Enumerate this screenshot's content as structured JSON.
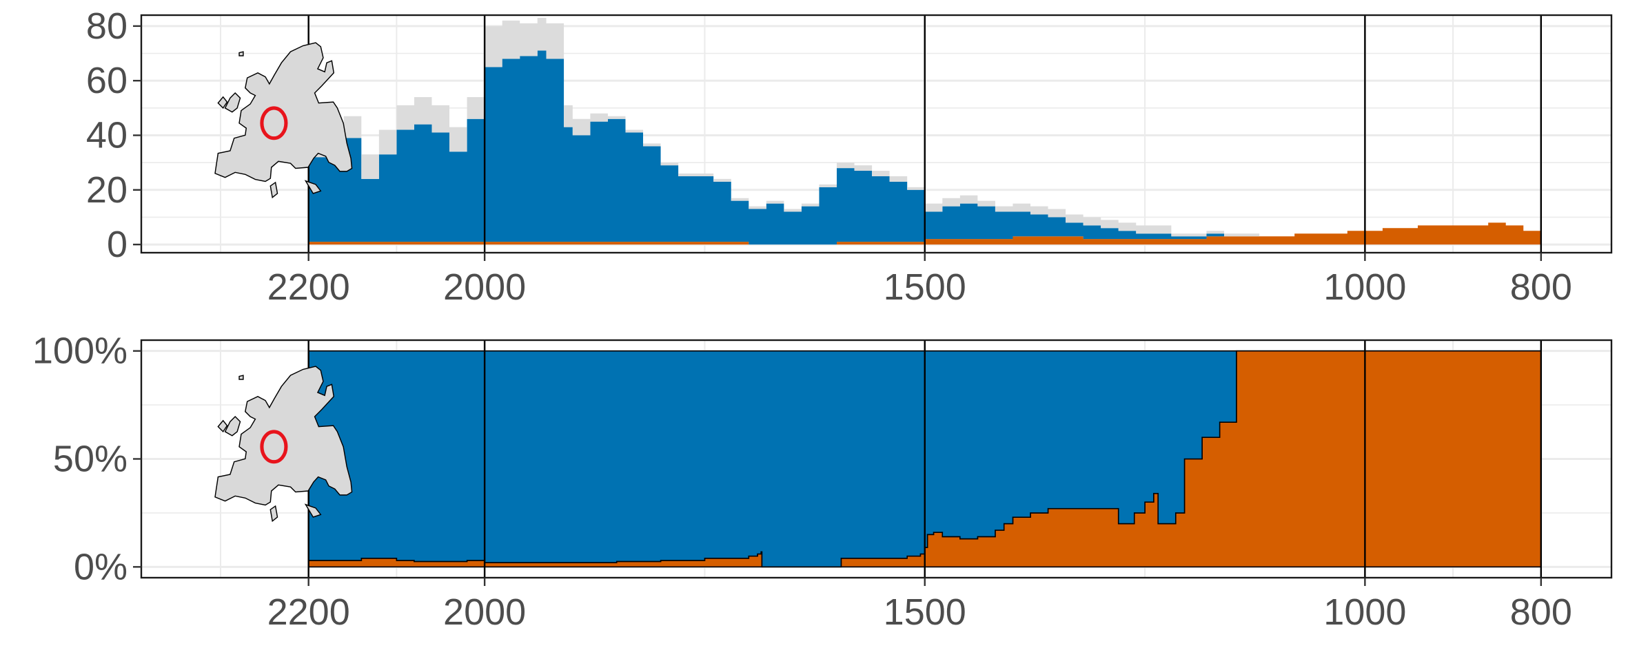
{
  "colors": {
    "blue": "#0072B2",
    "orange": "#D55E00",
    "gray": "#dcdcdc",
    "map_fill": "#d9d9d9",
    "marker": "#e8141c",
    "grid": "#ebebeb"
  },
  "chart_data": [
    {
      "type": "area",
      "stacked": true,
      "x_reversed": true,
      "xlim": [
        2390,
        720
      ],
      "ylim": [
        -3,
        84
      ],
      "x_ticks": [
        {
          "value": 2200,
          "label": "2200"
        },
        {
          "value": 2000,
          "label": "2000"
        },
        {
          "value": 1500,
          "label": "1500"
        },
        {
          "value": 1000,
          "label": "1000"
        },
        {
          "value": 800,
          "label": "800"
        }
      ],
      "y_ticks": [
        {
          "value": 0,
          "label": "0"
        },
        {
          "value": 20,
          "label": "20"
        },
        {
          "value": 40,
          "label": "40"
        },
        {
          "value": 60,
          "label": "60"
        },
        {
          "value": 80,
          "label": "80"
        }
      ],
      "grid": true,
      "vertical_lines": [
        2200,
        2000,
        1500,
        1000,
        800
      ],
      "inset": "map of Europe with red circle marking Central Europe",
      "x": [
        2200,
        2180,
        2160,
        2140,
        2120,
        2100,
        2080,
        2060,
        2040,
        2030,
        2020,
        2000,
        1980,
        1960,
        1940,
        1930,
        1910,
        1900,
        1880,
        1860,
        1840,
        1820,
        1800,
        1780,
        1760,
        1740,
        1720,
        1700,
        1680,
        1660,
        1640,
        1620,
        1600,
        1580,
        1560,
        1540,
        1520,
        1500,
        1480,
        1460,
        1440,
        1420,
        1400,
        1380,
        1360,
        1340,
        1320,
        1300,
        1280,
        1260,
        1240,
        1220,
        1200,
        1180,
        1160,
        1140,
        1120,
        1100,
        1080,
        1060,
        1040,
        1020,
        1000,
        980,
        960,
        940,
        920,
        900,
        880,
        860,
        840,
        820,
        800
      ],
      "series": [
        {
          "color_key": "orange",
          "values": [
            1,
            1,
            1,
            1,
            1,
            1,
            1,
            1,
            1,
            1,
            1,
            1,
            1,
            1,
            1,
            1,
            1,
            1,
            1,
            1,
            1,
            1,
            1,
            1,
            1,
            1,
            1,
            0,
            0,
            0,
            0,
            0,
            1,
            1,
            1,
            1,
            1,
            2,
            2,
            2,
            2,
            2,
            3,
            3,
            3,
            3,
            2,
            2,
            2,
            2,
            2,
            2,
            2,
            3,
            3,
            3,
            3,
            3,
            4,
            4,
            4,
            5,
            5,
            6,
            6,
            7,
            7,
            7,
            7,
            8,
            7,
            5,
            3
          ]
        },
        {
          "color_key": "blue",
          "values": [
            31,
            35,
            38,
            23,
            32,
            41,
            43,
            40,
            33,
            33,
            45,
            64,
            67,
            68,
            70,
            67,
            42,
            39,
            44,
            45,
            40,
            35,
            28,
            24,
            24,
            22,
            15,
            13,
            15,
            12,
            14,
            21,
            27,
            26,
            24,
            22,
            19,
            10,
            12,
            13,
            12,
            10,
            9,
            8,
            7,
            5,
            5,
            4,
            3,
            2,
            2,
            1,
            1,
            1,
            0,
            0,
            0,
            0,
            0,
            0,
            0,
            0,
            0,
            0,
            0,
            0,
            0,
            0,
            0,
            0,
            0,
            0,
            0
          ]
        },
        {
          "color_key": "gray",
          "values": [
            10,
            8,
            8,
            9,
            9,
            9,
            10,
            10,
            9,
            9,
            8,
            15,
            14,
            12,
            12,
            13,
            8,
            6,
            3,
            1,
            1,
            1,
            1,
            1,
            1,
            1,
            1,
            1,
            1,
            1,
            1,
            1,
            2,
            2,
            2,
            2,
            1,
            3,
            3,
            3,
            2,
            2,
            3,
            3,
            3,
            3,
            3,
            3,
            3,
            3,
            3,
            1,
            1,
            1,
            1,
            1,
            0,
            0,
            0,
            0,
            0,
            0,
            0,
            0,
            0,
            0,
            0,
            0,
            0,
            0,
            0,
            0,
            0
          ]
        }
      ]
    },
    {
      "type": "area",
      "stacked": true,
      "x_reversed": true,
      "xlim": [
        2390,
        720
      ],
      "ylim": [
        -5,
        105
      ],
      "x_ticks": [
        {
          "value": 2200,
          "label": "2200"
        },
        {
          "value": 2000,
          "label": "2000"
        },
        {
          "value": 1500,
          "label": "1500"
        },
        {
          "value": 1000,
          "label": "1000"
        },
        {
          "value": 800,
          "label": "800"
        }
      ],
      "y_ticks": [
        {
          "value": 0,
          "label": "0%"
        },
        {
          "value": 50,
          "label": "50%"
        },
        {
          "value": 100,
          "label": "100%"
        }
      ],
      "grid": true,
      "vertical_lines": [
        2200,
        2000,
        1500,
        1000,
        800
      ],
      "inset": "map of Europe with red circle marking Central Europe",
      "x": [
        2200,
        2180,
        2160,
        2140,
        2120,
        2100,
        2080,
        2060,
        2040,
        2020,
        2000,
        1950,
        1900,
        1850,
        1800,
        1750,
        1700,
        1690,
        1686,
        1685,
        1600,
        1595,
        1590,
        1550,
        1520,
        1505,
        1500,
        1497,
        1490,
        1480,
        1460,
        1440,
        1420,
        1410,
        1400,
        1380,
        1360,
        1330,
        1290,
        1280,
        1270,
        1262,
        1260,
        1250,
        1240,
        1236,
        1235,
        1225,
        1215,
        1214,
        1205,
        1195,
        1190,
        1185,
        1175,
        1165,
        1160,
        1150,
        1146,
        1145,
        1100,
        1000,
        900,
        800
      ],
      "series": [
        {
          "name_key": "",
          "color_key": "orange",
          "values": [
            3,
            3,
            3,
            4,
            4,
            3,
            2.5,
            2.5,
            2.5,
            3,
            2,
            2,
            2,
            2.5,
            3,
            4,
            5,
            6,
            7,
            0,
            0,
            4,
            4,
            4,
            5,
            6,
            9,
            15,
            16,
            14,
            13,
            14,
            17,
            20,
            23,
            25,
            27,
            27,
            27,
            20,
            20,
            25,
            25,
            30,
            34,
            34,
            20,
            20,
            25,
            25,
            50,
            50,
            50,
            60,
            60,
            67,
            67,
            67,
            100,
            100,
            100,
            100,
            100,
            100
          ]
        },
        {
          "name_key": "",
          "color_key": "blue",
          "values": [
            97,
            97,
            97,
            96,
            96,
            97,
            97.5,
            97.5,
            97.5,
            97,
            98,
            98,
            98,
            97.5,
            97,
            96,
            95,
            94,
            93,
            100,
            100,
            96,
            96,
            96,
            95,
            94,
            91,
            85,
            84,
            86,
            87,
            86,
            83,
            80,
            77,
            75,
            73,
            73,
            73,
            80,
            80,
            75,
            75,
            70,
            66,
            66,
            80,
            80,
            75,
            75,
            50,
            50,
            50,
            40,
            40,
            33,
            33,
            33,
            0,
            0,
            0,
            0,
            0,
            0
          ]
        }
      ]
    }
  ]
}
